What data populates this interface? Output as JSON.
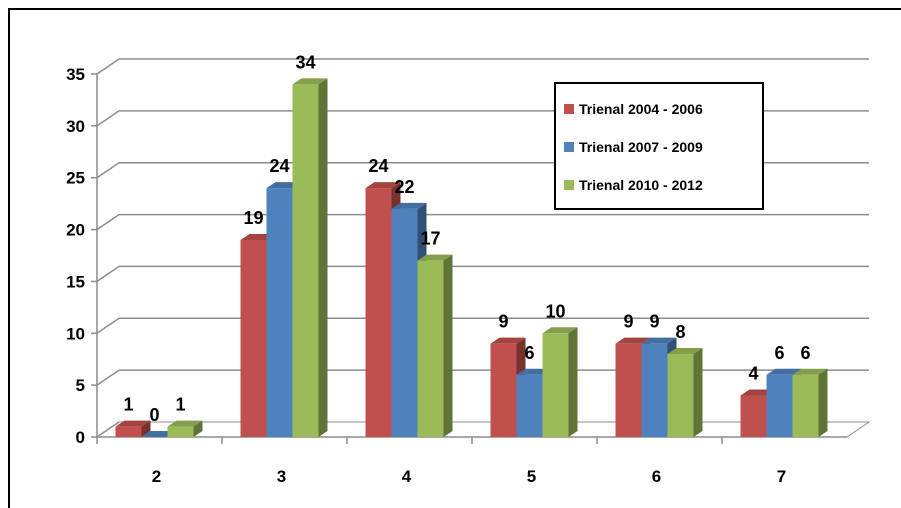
{
  "chart_data": {
    "type": "bar",
    "categories": [
      "2",
      "3",
      "4",
      "5",
      "6",
      "7"
    ],
    "series": [
      {
        "name": "Trienal 2004 - 2006",
        "values": [
          1,
          19,
          24,
          9,
          9,
          4
        ],
        "color": "#c0504d"
      },
      {
        "name": "Trienal 2007 - 2009",
        "values": [
          0,
          24,
          22,
          6,
          9,
          6
        ],
        "color": "#4f81bd"
      },
      {
        "name": "Trienal 2010 - 2012",
        "values": [
          1,
          34,
          17,
          10,
          8,
          6
        ],
        "color": "#9bbb59"
      }
    ],
    "yticks": [
      "0",
      "5",
      "10",
      "15",
      "20",
      "25",
      "30",
      "35"
    ],
    "ylim": [
      0,
      35
    ],
    "grid": true,
    "legend_position": "top-right",
    "title": "",
    "xlabel": "",
    "ylabel": ""
  }
}
